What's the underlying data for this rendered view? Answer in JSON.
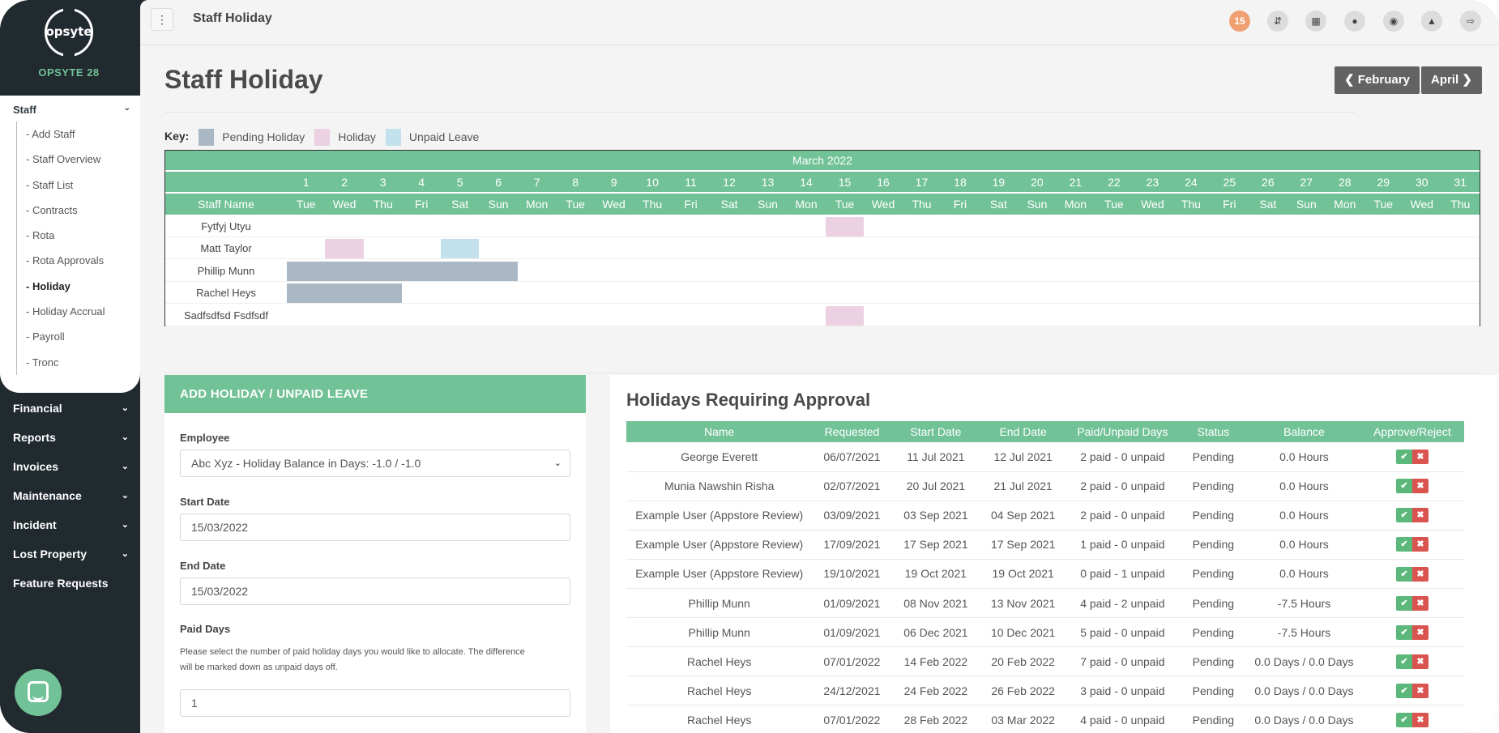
{
  "app": {
    "logo_text": "opsyte",
    "company": "OPSYTE 28"
  },
  "sidebar": {
    "staff": {
      "label": "Staff",
      "items": [
        "- Add Staff",
        "- Staff Overview",
        "- Staff List",
        "- Contracts",
        "- Rota",
        "- Rota Approvals",
        "- Holiday",
        "- Holiday Accrual",
        "- Payroll",
        "- Tronc"
      ],
      "active": "- Holiday"
    },
    "nav": [
      "Financial",
      "Reports",
      "Invoices",
      "Maintenance",
      "Incident",
      "Lost Property",
      "Feature Requests"
    ]
  },
  "topbar": {
    "title": "Staff Holiday",
    "badge": "15",
    "icons": [
      "sort-icon",
      "grid-icon",
      "team-icon",
      "globe-icon",
      "user-icon",
      "logout-icon"
    ]
  },
  "page": {
    "title": "Staff Holiday",
    "prev_month": "February",
    "next_month": "April"
  },
  "key": {
    "label": "Key:",
    "items": [
      {
        "label": "Pending Holiday",
        "color": "#aab8c6"
      },
      {
        "label": "Holiday",
        "color": "#ecd1e3"
      },
      {
        "label": "Unpaid Leave",
        "color": "#c2e1ec"
      }
    ]
  },
  "calendar": {
    "month": "March 2022",
    "staff_header": "Staff Name",
    "days": [
      {
        "n": "1",
        "d": "Tue"
      },
      {
        "n": "2",
        "d": "Wed"
      },
      {
        "n": "3",
        "d": "Thu"
      },
      {
        "n": "4",
        "d": "Fri"
      },
      {
        "n": "5",
        "d": "Sat"
      },
      {
        "n": "6",
        "d": "Sun"
      },
      {
        "n": "7",
        "d": "Mon"
      },
      {
        "n": "8",
        "d": "Tue"
      },
      {
        "n": "9",
        "d": "Wed"
      },
      {
        "n": "10",
        "d": "Thu"
      },
      {
        "n": "11",
        "d": "Fri"
      },
      {
        "n": "12",
        "d": "Sat"
      },
      {
        "n": "13",
        "d": "Sun"
      },
      {
        "n": "14",
        "d": "Mon"
      },
      {
        "n": "15",
        "d": "Tue"
      },
      {
        "n": "16",
        "d": "Wed"
      },
      {
        "n": "17",
        "d": "Thu"
      },
      {
        "n": "18",
        "d": "Fri"
      },
      {
        "n": "19",
        "d": "Sat"
      },
      {
        "n": "20",
        "d": "Sun"
      },
      {
        "n": "21",
        "d": "Mon"
      },
      {
        "n": "22",
        "d": "Tue"
      },
      {
        "n": "23",
        "d": "Wed"
      },
      {
        "n": "24",
        "d": "Thu"
      },
      {
        "n": "25",
        "d": "Fri"
      },
      {
        "n": "26",
        "d": "Sat"
      },
      {
        "n": "27",
        "d": "Sun"
      },
      {
        "n": "28",
        "d": "Mon"
      },
      {
        "n": "29",
        "d": "Tue"
      },
      {
        "n": "30",
        "d": "Wed"
      },
      {
        "n": "31",
        "d": "Thu"
      }
    ],
    "rows": [
      {
        "name": "Fytfyj Utyu",
        "blocks": [
          {
            "from": 15,
            "to": 15,
            "type": "holiday"
          }
        ]
      },
      {
        "name": "Matt Taylor",
        "blocks": [
          {
            "from": 2,
            "to": 2,
            "type": "holiday"
          },
          {
            "from": 5,
            "to": 5,
            "type": "unpaid"
          }
        ]
      },
      {
        "name": "Phillip Munn",
        "blocks": [
          {
            "from": 1,
            "to": 6,
            "type": "pending"
          }
        ]
      },
      {
        "name": "Rachel Heys",
        "blocks": [
          {
            "from": 1,
            "to": 3,
            "type": "pending"
          }
        ]
      },
      {
        "name": "Sadfsdfsd Fsdfsdf",
        "blocks": [
          {
            "from": 15,
            "to": 15,
            "type": "holiday"
          }
        ]
      }
    ]
  },
  "add_form": {
    "title": "ADD HOLIDAY / UNPAID LEAVE",
    "employee_label": "Employee",
    "employee_value": "Abc Xyz - Holiday Balance in Days: -1.0 / -1.0",
    "start_label": "Start Date",
    "start_value": "15/03/2022",
    "end_label": "End Date",
    "end_value": "15/03/2022",
    "paid_label": "Paid Days",
    "paid_help": "Please select the number of paid holiday days you would like to allocate. The difference will be marked down as unpaid days off.",
    "paid_value": "1"
  },
  "approvals": {
    "title": "Holidays Requiring Approval",
    "columns": [
      "Name",
      "Requested",
      "Start Date",
      "End Date",
      "Paid/Unpaid Days",
      "Status",
      "Balance",
      "Approve/Reject"
    ],
    "rows": [
      [
        "George Everett",
        "06/07/2021",
        "11 Jul 2021",
        "12 Jul 2021",
        "2 paid - 0 unpaid",
        "Pending",
        "0.0 Hours"
      ],
      [
        "Munia Nawshin Risha",
        "02/07/2021",
        "20 Jul 2021",
        "21 Jul 2021",
        "2 paid - 0 unpaid",
        "Pending",
        "0.0 Hours"
      ],
      [
        "Example User (Appstore Review)",
        "03/09/2021",
        "03 Sep 2021",
        "04 Sep 2021",
        "2 paid - 0 unpaid",
        "Pending",
        "0.0 Hours"
      ],
      [
        "Example User (Appstore Review)",
        "17/09/2021",
        "17 Sep 2021",
        "17 Sep 2021",
        "1 paid - 0 unpaid",
        "Pending",
        "0.0 Hours"
      ],
      [
        "Example User (Appstore Review)",
        "19/10/2021",
        "19 Oct 2021",
        "19 Oct 2021",
        "0 paid - 1 unpaid",
        "Pending",
        "0.0 Hours"
      ],
      [
        "Phillip Munn",
        "01/09/2021",
        "08 Nov 2021",
        "13 Nov 2021",
        "4 paid - 2 unpaid",
        "Pending",
        "-7.5 Hours"
      ],
      [
        "Phillip Munn",
        "01/09/2021",
        "06 Dec 2021",
        "10 Dec 2021",
        "5 paid - 0 unpaid",
        "Pending",
        "-7.5 Hours"
      ],
      [
        "Rachel Heys",
        "07/01/2022",
        "14 Feb 2022",
        "20 Feb 2022",
        "7 paid - 0 unpaid",
        "Pending",
        "0.0 Days / 0.0 Days"
      ],
      [
        "Rachel Heys",
        "24/12/2021",
        "24 Feb 2022",
        "26 Feb 2022",
        "3 paid - 0 unpaid",
        "Pending",
        "0.0 Days / 0.0 Days"
      ],
      [
        "Rachel Heys",
        "07/01/2022",
        "28 Feb 2022",
        "03 Mar 2022",
        "4 paid - 0 unpaid",
        "Pending",
        "0.0 Days / 0.0 Days"
      ]
    ]
  }
}
